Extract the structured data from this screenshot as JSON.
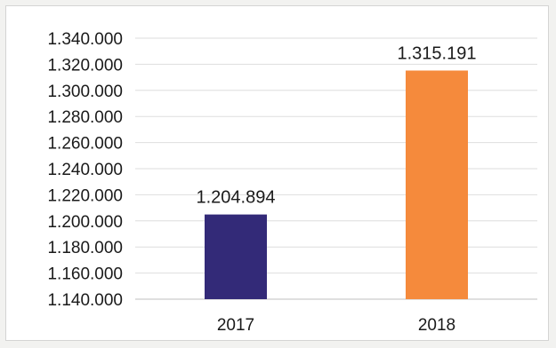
{
  "chart_data": {
    "type": "bar",
    "categories": [
      "2017",
      "2018"
    ],
    "values": [
      1204894,
      1315191
    ],
    "value_labels": [
      "1.204.894",
      "1.315.191"
    ],
    "bar_colors": [
      "#332a78",
      "#f58a3c"
    ],
    "ylim": [
      1140000,
      1340000
    ],
    "ytick_step": 20000,
    "ytick_labels": [
      "1.140.000",
      "1.160.000",
      "1.180.000",
      "1.200.000",
      "1.220.000",
      "1.240.000",
      "1.260.000",
      "1.280.000",
      "1.300.000",
      "1.320.000",
      "1.340.000"
    ],
    "grid": true,
    "legend": "none",
    "title": "",
    "xlabel": "",
    "ylabel": ""
  }
}
